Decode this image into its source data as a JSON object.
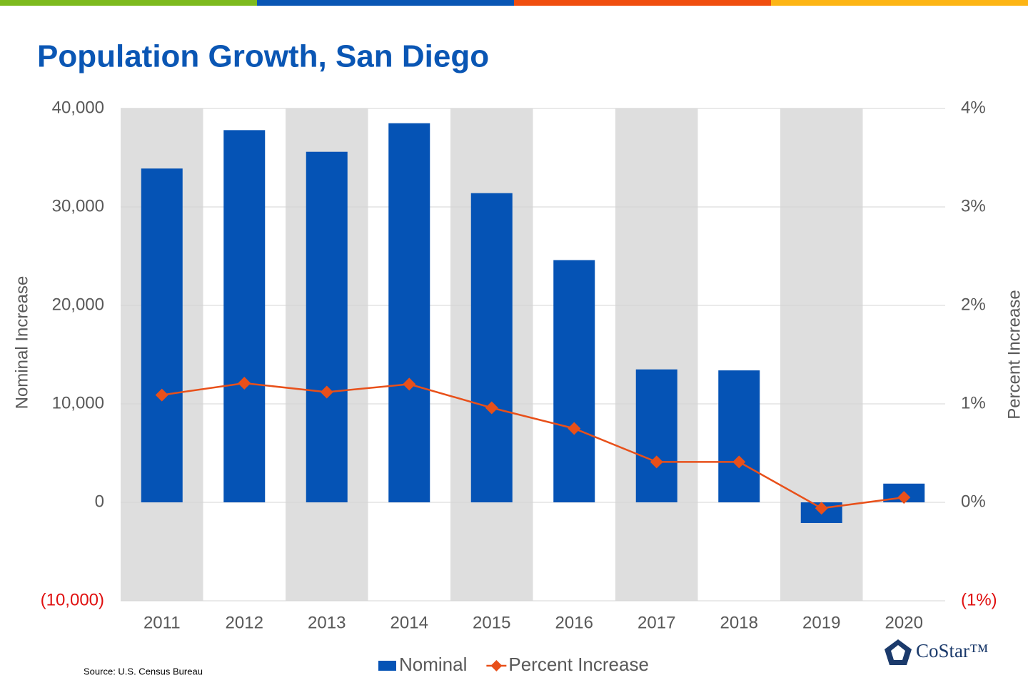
{
  "chart_data": {
    "type": "bar-line",
    "title": "Population Growth, San Diego",
    "source": "Source: U.S. Census Bureau",
    "logo": "CoStar™",
    "y_label": "Nominal Increase",
    "y2_label": "Percent Increase",
    "categories": [
      "2011",
      "2012",
      "2013",
      "2014",
      "2015",
      "2016",
      "2017",
      "2018",
      "2019",
      "2020"
    ],
    "series": [
      {
        "name": "Nominal",
        "type": "bar",
        "color": "#0553b5",
        "values": [
          33900,
          37800,
          35600,
          38500,
          31400,
          24600,
          13500,
          13400,
          -2100,
          1900
        ]
      },
      {
        "name": "Percent Increase",
        "type": "line",
        "axis": "y2",
        "color": "#e8501a",
        "values": [
          1.09,
          1.21,
          1.12,
          1.2,
          0.96,
          0.75,
          0.41,
          0.41,
          -0.06,
          0.05
        ]
      }
    ],
    "ylim": [
      -10000,
      40000
    ],
    "yticks": [
      {
        "value": -10000,
        "label": "(10,000)"
      },
      0,
      {
        "value": 10000,
        "label": "10,000"
      },
      {
        "value": 20000,
        "label": "20,000"
      },
      {
        "value": 30000,
        "label": "30,000"
      },
      {
        "value": 40000,
        "label": "40,000"
      }
    ],
    "y2lim": [
      -1,
      4
    ],
    "y2ticks": [
      {
        "value": -1,
        "label": "(1%)"
      },
      {
        "value": 0,
        "label": "0%"
      },
      {
        "value": 1,
        "label": "1%"
      },
      {
        "value": 2,
        "label": "2%"
      },
      {
        "value": 3,
        "label": "3%"
      },
      {
        "value": 4,
        "label": "4%"
      }
    ],
    "grid": true,
    "legend": "bottom"
  }
}
